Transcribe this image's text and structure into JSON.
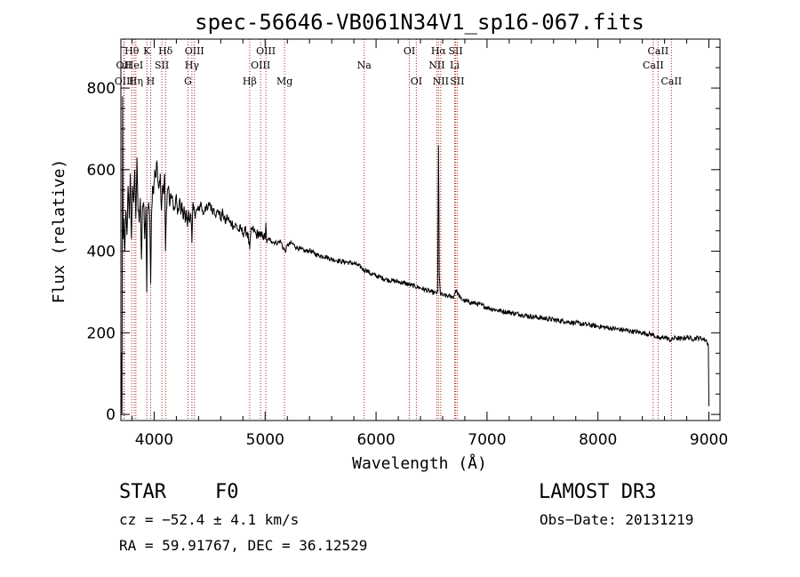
{
  "chart_data": {
    "type": "line",
    "title": "spec-56646-VB061N34V1_sp16-067.fits",
    "xlabel": "Wavelength (Å)",
    "ylabel": "Flux (relative)",
    "xlim": [
      3700,
      9100
    ],
    "ylim": [
      -15,
      920
    ],
    "xticks": [
      4000,
      5000,
      6000,
      7000,
      8000,
      9000
    ],
    "yticks": [
      0,
      200,
      400,
      600,
      800
    ],
    "spectrum": [
      [
        3700,
        0
      ],
      [
        3705,
        150
      ],
      [
        3710,
        0
      ],
      [
        3715,
        780
      ],
      [
        3720,
        430
      ],
      [
        3725,
        480
      ],
      [
        3735,
        400
      ],
      [
        3745,
        500
      ],
      [
        3755,
        440
      ],
      [
        3765,
        560
      ],
      [
        3775,
        480
      ],
      [
        3785,
        590
      ],
      [
        3795,
        430
      ],
      [
        3805,
        560
      ],
      [
        3815,
        520
      ],
      [
        3825,
        600
      ],
      [
        3835,
        480
      ],
      [
        3845,
        630
      ],
      [
        3855,
        500
      ],
      [
        3865,
        470
      ],
      [
        3875,
        530
      ],
      [
        3885,
        380
      ],
      [
        3895,
        510
      ],
      [
        3905,
        520
      ],
      [
        3915,
        430
      ],
      [
        3925,
        510
      ],
      [
        3933,
        300
      ],
      [
        3940,
        490
      ],
      [
        3950,
        520
      ],
      [
        3960,
        480
      ],
      [
        3968,
        320
      ],
      [
        3975,
        470
      ],
      [
        3985,
        560
      ],
      [
        3995,
        540
      ],
      [
        4005,
        600
      ],
      [
        4015,
        580
      ],
      [
        4025,
        620
      ],
      [
        4035,
        570
      ],
      [
        4045,
        560
      ],
      [
        4055,
        590
      ],
      [
        4065,
        500
      ],
      [
        4075,
        560
      ],
      [
        4085,
        540
      ],
      [
        4095,
        590
      ],
      [
        4102,
        400
      ],
      [
        4110,
        500
      ],
      [
        4120,
        550
      ],
      [
        4130,
        560
      ],
      [
        4140,
        510
      ],
      [
        4150,
        540
      ],
      [
        4160,
        530
      ],
      [
        4170,
        520
      ],
      [
        4180,
        500
      ],
      [
        4190,
        510
      ],
      [
        4200,
        540
      ],
      [
        4210,
        490
      ],
      [
        4220,
        500
      ],
      [
        4230,
        530
      ],
      [
        4240,
        490
      ],
      [
        4250,
        520
      ],
      [
        4260,
        480
      ],
      [
        4270,
        510
      ],
      [
        4280,
        470
      ],
      [
        4290,
        500
      ],
      [
        4300,
        460
      ],
      [
        4310,
        500
      ],
      [
        4320,
        470
      ],
      [
        4330,
        490
      ],
      [
        4340,
        420
      ],
      [
        4350,
        520
      ],
      [
        4360,
        510
      ],
      [
        4370,
        480
      ],
      [
        4380,
        500
      ],
      [
        4400,
        500
      ],
      [
        4420,
        520
      ],
      [
        4440,
        490
      ],
      [
        4460,
        510
      ],
      [
        4480,
        500
      ],
      [
        4500,
        520
      ],
      [
        4520,
        500
      ],
      [
        4540,
        505
      ],
      [
        4560,
        490
      ],
      [
        4580,
        500
      ],
      [
        4600,
        480
      ],
      [
        4620,
        495
      ],
      [
        4640,
        470
      ],
      [
        4660,
        485
      ],
      [
        4680,
        470
      ],
      [
        4700,
        470
      ],
      [
        4720,
        460
      ],
      [
        4740,
        465
      ],
      [
        4760,
        450
      ],
      [
        4780,
        455
      ],
      [
        4800,
        445
      ],
      [
        4820,
        450
      ],
      [
        4840,
        445
      ],
      [
        4850,
        430
      ],
      [
        4861,
        405
      ],
      [
        4870,
        440
      ],
      [
        4880,
        455
      ],
      [
        4900,
        450
      ],
      [
        4920,
        440
      ],
      [
        4940,
        445
      ],
      [
        4960,
        435
      ],
      [
        4980,
        440
      ],
      [
        5000,
        430
      ],
      [
        5007,
        470
      ],
      [
        5015,
        420
      ],
      [
        5030,
        430
      ],
      [
        5060,
        425
      ],
      [
        5100,
        420
      ],
      [
        5140,
        425
      ],
      [
        5167,
        405
      ],
      [
        5183,
        400
      ],
      [
        5200,
        415
      ],
      [
        5240,
        420
      ],
      [
        5280,
        410
      ],
      [
        5320,
        405
      ],
      [
        5360,
        400
      ],
      [
        5400,
        402
      ],
      [
        5440,
        395
      ],
      [
        5480,
        390
      ],
      [
        5520,
        388
      ],
      [
        5560,
        385
      ],
      [
        5600,
        380
      ],
      [
        5640,
        378
      ],
      [
        5680,
        375
      ],
      [
        5720,
        374
      ],
      [
        5760,
        372
      ],
      [
        5800,
        370
      ],
      [
        5840,
        365
      ],
      [
        5870,
        360
      ],
      [
        5893,
        352
      ],
      [
        5910,
        355
      ],
      [
        5950,
        345
      ],
      [
        6000,
        340
      ],
      [
        6050,
        335
      ],
      [
        6100,
        330
      ],
      [
        6150,
        328
      ],
      [
        6200,
        325
      ],
      [
        6250,
        322
      ],
      [
        6300,
        318
      ],
      [
        6350,
        314
      ],
      [
        6400,
        310
      ],
      [
        6450,
        305
      ],
      [
        6500,
        300
      ],
      [
        6540,
        297
      ],
      [
        6555,
        300
      ],
      [
        6563,
        660
      ],
      [
        6570,
        340
      ],
      [
        6580,
        295
      ],
      [
        6600,
        292
      ],
      [
        6650,
        290
      ],
      [
        6700,
        288
      ],
      [
        6717,
        305
      ],
      [
        6731,
        300
      ],
      [
        6760,
        285
      ],
      [
        6800,
        278
      ],
      [
        6850,
        275
      ],
      [
        6900,
        272
      ],
      [
        6950,
        268
      ],
      [
        7000,
        262
      ],
      [
        7100,
        255
      ],
      [
        7200,
        250
      ],
      [
        7300,
        245
      ],
      [
        7400,
        240
      ],
      [
        7500,
        236
      ],
      [
        7600,
        232
      ],
      [
        7700,
        228
      ],
      [
        7800,
        224
      ],
      [
        7900,
        220
      ],
      [
        8000,
        216
      ],
      [
        8100,
        212
      ],
      [
        8200,
        208
      ],
      [
        8300,
        204
      ],
      [
        8400,
        200
      ],
      [
        8500,
        195
      ],
      [
        8550,
        185
      ],
      [
        8600,
        190
      ],
      [
        8650,
        182
      ],
      [
        8700,
        188
      ],
      [
        8750,
        185
      ],
      [
        8800,
        190
      ],
      [
        8850,
        185
      ],
      [
        8900,
        188
      ],
      [
        8950,
        185
      ],
      [
        8980,
        180
      ],
      [
        8995,
        170
      ],
      [
        9000,
        20
      ]
    ],
    "lines": [
      {
        "label": "OII",
        "wl": 3727,
        "row": 2
      },
      {
        "label": "OIII",
        "wl": 3730,
        "row": 3
      },
      {
        "label": "Hθ",
        "wl": 3798,
        "row": 1
      },
      {
        "label": "HeI",
        "wl": 3820,
        "row": 2
      },
      {
        "label": "Hη",
        "wl": 3835,
        "row": 3
      },
      {
        "label": "K",
        "wl": 3934,
        "row": 1
      },
      {
        "label": "SII",
        "wl": 4069,
        "row": 2
      },
      {
        "label": "H",
        "wl": 3968,
        "row": 3
      },
      {
        "label": "Hδ",
        "wl": 4102,
        "row": 1
      },
      {
        "label": "OIII",
        "wl": 4363,
        "row": 1
      },
      {
        "label": "Hγ",
        "wl": 4340,
        "row": 2
      },
      {
        "label": "G",
        "wl": 4305,
        "row": 3
      },
      {
        "label": "Hβ",
        "wl": 4861,
        "row": 3
      },
      {
        "label": "OIII",
        "wl": 5007,
        "row": 1
      },
      {
        "label": "OIII",
        "wl": 4959,
        "row": 2
      },
      {
        "label": "Mg",
        "wl": 5175,
        "row": 3
      },
      {
        "label": "Na",
        "wl": 5893,
        "row": 2
      },
      {
        "label": "OI",
        "wl": 6300,
        "row": 1
      },
      {
        "label": "OI",
        "wl": 6363,
        "row": 3
      },
      {
        "label": "Hα",
        "wl": 6563,
        "row": 1
      },
      {
        "label": "NII",
        "wl": 6548,
        "row": 2
      },
      {
        "label": "NII",
        "wl": 6583,
        "row": 3
      },
      {
        "label": "SII",
        "wl": 6717,
        "row": 1
      },
      {
        "label": "Li",
        "wl": 6708,
        "row": 2
      },
      {
        "label": "SII",
        "wl": 6731,
        "row": 3
      },
      {
        "label": "CaII",
        "wl": 8542,
        "row": 1
      },
      {
        "label": "CaII",
        "wl": 8498,
        "row": 2
      },
      {
        "label": "CaII",
        "wl": 8662,
        "row": 3
      }
    ]
  },
  "info": {
    "object_class": "STAR",
    "subclass": "F0",
    "survey": "LAMOST DR3",
    "cz": "cz = −52.4 ± 4.1 km/s",
    "obs_date": "Obs−Date: 20131219",
    "coords": "RA =  59.91767, DEC =  36.12529"
  },
  "colors": {
    "line_marker": "#b22222",
    "spectrum": "#000000",
    "axes": "#000000"
  }
}
